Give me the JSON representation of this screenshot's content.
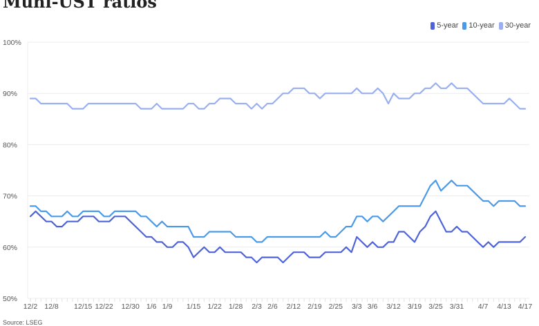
{
  "chart_data": {
    "type": "line",
    "title": "Muni-UST ratios",
    "source": "Source: LSEG",
    "ylim": [
      50,
      100
    ],
    "y_ticks": [
      "50%",
      "60%",
      "70%",
      "80%",
      "90%",
      "100%"
    ],
    "y_tick_values": [
      50,
      60,
      70,
      80,
      90,
      100
    ],
    "grid": true,
    "legend_placement": "top-right",
    "x_ticks": [
      {
        "label": "12/2",
        "index": 0
      },
      {
        "label": "12/8",
        "index": 4
      },
      {
        "label": "12/15",
        "index": 10
      },
      {
        "label": "12/22",
        "index": 14
      },
      {
        "label": "12/30",
        "index": 19
      },
      {
        "label": "1/6",
        "index": 23
      },
      {
        "label": "1/9",
        "index": 26
      },
      {
        "label": "1/15",
        "index": 31
      },
      {
        "label": "1/22",
        "index": 35
      },
      {
        "label": "1/28",
        "index": 39
      },
      {
        "label": "2/3",
        "index": 43
      },
      {
        "label": "2/6",
        "index": 46
      },
      {
        "label": "2/12",
        "index": 50
      },
      {
        "label": "2/19",
        "index": 54
      },
      {
        "label": "2/25",
        "index": 58
      },
      {
        "label": "3/3",
        "index": 62
      },
      {
        "label": "3/6",
        "index": 65
      },
      {
        "label": "3/12",
        "index": 69
      },
      {
        "label": "3/19",
        "index": 73
      },
      {
        "label": "3/25",
        "index": 77
      },
      {
        "label": "3/31",
        "index": 81
      },
      {
        "label": "4/7",
        "index": 86
      },
      {
        "label": "4/13",
        "index": 90
      },
      {
        "label": "4/17",
        "index": 94
      }
    ],
    "series": [
      {
        "name": "5-year",
        "color": "#4f63d9",
        "values": [
          66,
          67,
          66,
          65,
          65,
          64,
          64,
          65,
          65,
          65,
          66,
          66,
          66,
          65,
          65,
          65,
          66,
          66,
          66,
          65,
          64,
          63,
          62,
          62,
          61,
          61,
          60,
          60,
          61,
          61,
          60,
          58,
          59,
          60,
          59,
          59,
          60,
          59,
          59,
          59,
          59,
          58,
          58,
          57,
          58,
          58,
          58,
          58,
          57,
          58,
          59,
          59,
          59,
          58,
          58,
          58,
          59,
          59,
          59,
          59,
          60,
          59,
          62,
          61,
          60,
          61,
          60,
          60,
          61,
          61,
          63,
          63,
          62,
          61,
          63,
          64,
          66,
          67,
          65,
          63,
          63,
          64,
          63,
          63,
          62,
          61,
          60,
          61,
          60,
          61,
          61,
          61,
          61,
          61,
          62
        ]
      },
      {
        "name": "10-year",
        "color": "#4a9ae8",
        "values": [
          68,
          68,
          67,
          67,
          66,
          66,
          66,
          67,
          66,
          66,
          67,
          67,
          67,
          67,
          66,
          66,
          67,
          67,
          67,
          67,
          67,
          66,
          66,
          65,
          64,
          65,
          64,
          64,
          64,
          64,
          64,
          62,
          62,
          62,
          63,
          63,
          63,
          63,
          63,
          62,
          62,
          62,
          62,
          61,
          61,
          62,
          62,
          62,
          62,
          62,
          62,
          62,
          62,
          62,
          62,
          62,
          63,
          62,
          62,
          63,
          64,
          64,
          66,
          66,
          65,
          66,
          66,
          65,
          66,
          67,
          68,
          68,
          68,
          68,
          68,
          70,
          72,
          73,
          71,
          72,
          73,
          72,
          72,
          72,
          71,
          70,
          69,
          69,
          68,
          69,
          69,
          69,
          69,
          68,
          68
        ]
      },
      {
        "name": "30-year",
        "color": "#9aaff0",
        "values": [
          89,
          89,
          88,
          88,
          88,
          88,
          88,
          88,
          87,
          87,
          87,
          88,
          88,
          88,
          88,
          88,
          88,
          88,
          88,
          88,
          88,
          87,
          87,
          87,
          88,
          87,
          87,
          87,
          87,
          87,
          88,
          88,
          87,
          87,
          88,
          88,
          89,
          89,
          89,
          88,
          88,
          88,
          87,
          88,
          87,
          88,
          88,
          89,
          90,
          90,
          91,
          91,
          91,
          90,
          90,
          89,
          90,
          90,
          90,
          90,
          90,
          90,
          91,
          90,
          90,
          90,
          91,
          90,
          88,
          90,
          89,
          89,
          89,
          90,
          90,
          91,
          91,
          92,
          91,
          91,
          92,
          91,
          91,
          91,
          90,
          89,
          88,
          88,
          88,
          88,
          88,
          89,
          88,
          87,
          87
        ]
      }
    ]
  }
}
